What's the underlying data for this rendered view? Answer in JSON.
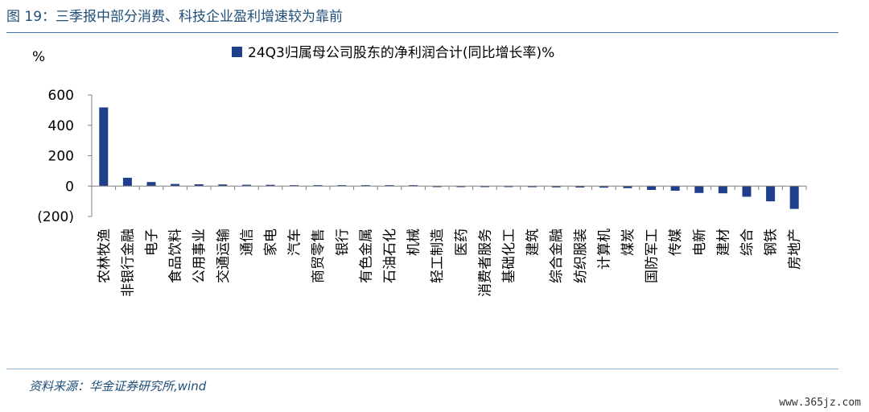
{
  "figure": {
    "title": "图 19：三季报中部分消费、科技企业盈利增速较为靠前",
    "source": "资料来源：华金证券研究所,wind",
    "watermark": "www.365jz.com"
  },
  "chart_data": {
    "type": "bar",
    "ylabel": "%",
    "ylim": [
      -200,
      600
    ],
    "yticks": [
      600,
      400,
      200,
      0,
      -200
    ],
    "ytick_labels": [
      "600",
      "400",
      "200",
      "0",
      "(200)"
    ],
    "legend_position": "top",
    "grid": false,
    "series": [
      {
        "name": "24Q3归属母公司股东的净利润合计(同比增长率)%",
        "color": "#1f3e8c",
        "values": [
          518,
          55,
          27,
          14,
          12,
          11,
          9,
          8,
          6,
          3,
          2,
          1,
          1,
          0,
          -1,
          -2,
          -5,
          -6,
          -7,
          -8,
          -9,
          -10,
          -13,
          -25,
          -30,
          -45,
          -47,
          -70,
          -100,
          -150
        ]
      }
    ],
    "categories": [
      "农林牧渔",
      "非银行金融",
      "电子",
      "食品饮料",
      "公用事业",
      "交通运输",
      "通信",
      "家电",
      "汽车",
      "商贸零售",
      "银行",
      "有色金属",
      "石油石化",
      "机械",
      "轻工制造",
      "医药",
      "消费者服务",
      "基础化工",
      "建筑",
      "综合金融",
      "纺织服装",
      "计算机",
      "煤炭",
      "国防军工",
      "传媒",
      "电新",
      "建材",
      "综合",
      "钢铁",
      "房地产"
    ]
  }
}
